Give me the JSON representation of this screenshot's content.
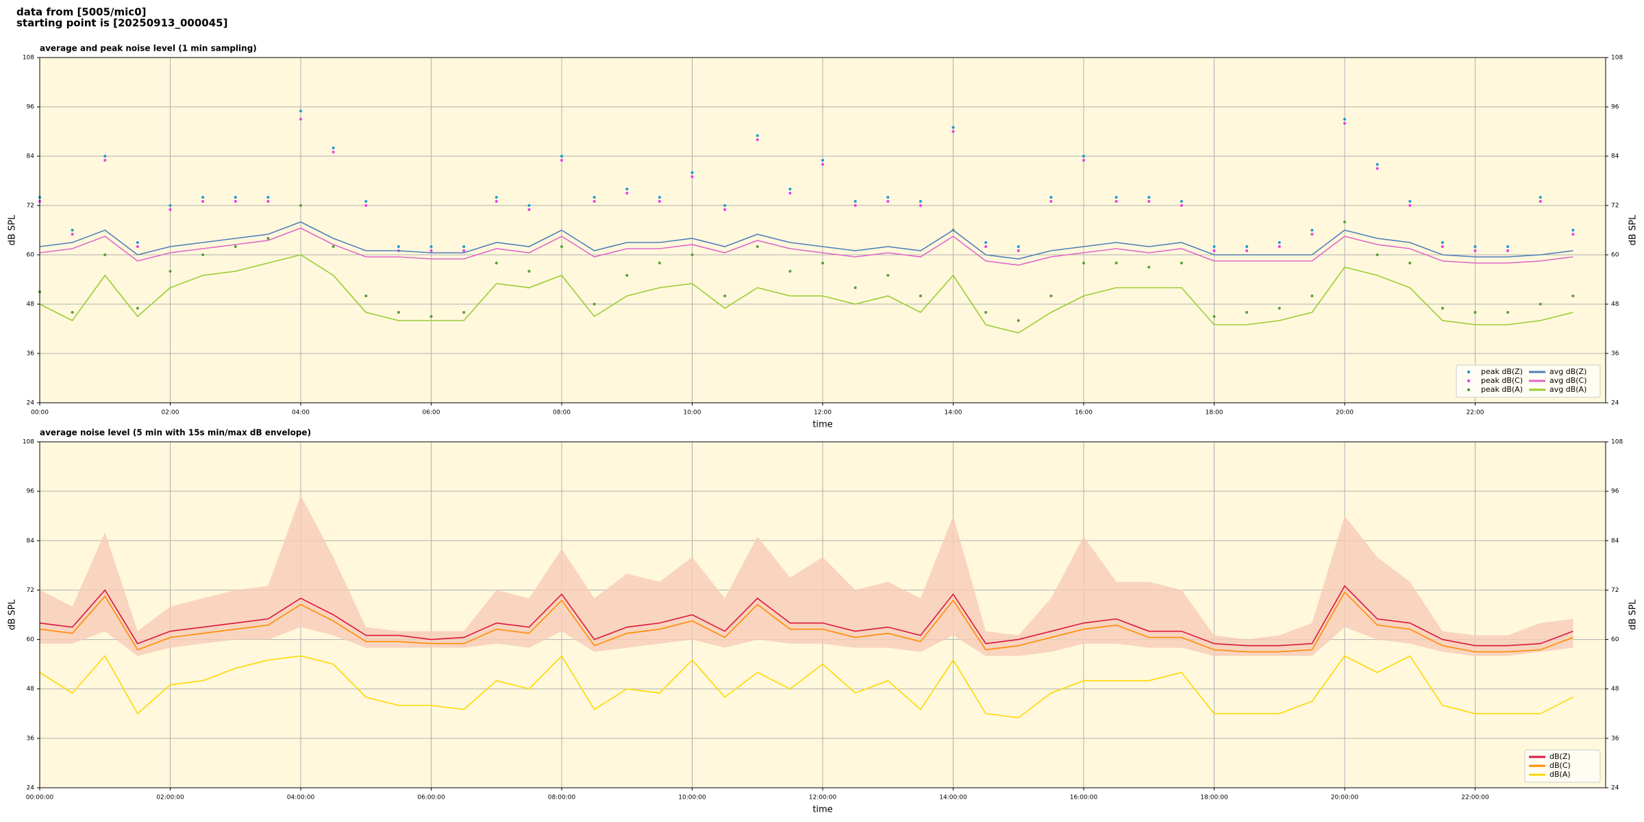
{
  "header": {
    "line1": "data from [5005/mic0]",
    "line2": "starting point is [20250913_000045]"
  },
  "chart_data": [
    {
      "type": "line",
      "title": "average and peak noise level (1 min sampling)",
      "xlabel": "time",
      "ylabel": "dB SPL",
      "background": "#fff8dc",
      "grid": true,
      "legend": "lower right",
      "legend_columns": 2,
      "xlim": [
        0,
        24
      ],
      "ylim": [
        24,
        108
      ],
      "yticks": [
        24,
        36,
        48,
        60,
        72,
        84,
        96,
        108
      ],
      "xticks": [
        {
          "value": 0,
          "label": "00:00"
        },
        {
          "value": 2,
          "label": "02:00"
        },
        {
          "value": 4,
          "label": "04:00"
        },
        {
          "value": 6,
          "label": "06:00"
        },
        {
          "value": 8,
          "label": "08:00"
        },
        {
          "value": 10,
          "label": "10:00"
        },
        {
          "value": 12,
          "label": "12:00"
        },
        {
          "value": 14,
          "label": "14:00"
        },
        {
          "value": 16,
          "label": "16:00"
        },
        {
          "value": 18,
          "label": "18:00"
        },
        {
          "value": 20,
          "label": "20:00"
        },
        {
          "value": 22,
          "label": "22:00"
        }
      ],
      "x": [
        0,
        0.5,
        1,
        1.5,
        2,
        2.5,
        3,
        3.5,
        4,
        4.5,
        5,
        5.5,
        6,
        6.5,
        7,
        7.5,
        8,
        8.5,
        9,
        9.5,
        10,
        10.5,
        11,
        11.5,
        12,
        12.5,
        13,
        13.5,
        14,
        14.5,
        15,
        15.5,
        16,
        16.5,
        17,
        17.5,
        18,
        18.5,
        19,
        19.5,
        20,
        20.5,
        21,
        21.5,
        22,
        22.5,
        23,
        23.5
      ],
      "series": [
        {
          "name": "peak dB(Z)",
          "style": "scatter",
          "color": "#1f9bd1",
          "values": [
            74,
            66,
            84,
            63,
            72,
            74,
            74,
            74,
            95,
            86,
            73,
            62,
            62,
            62,
            74,
            72,
            84,
            74,
            76,
            74,
            80,
            72,
            89,
            76,
            83,
            73,
            74,
            73,
            91,
            63,
            62,
            74,
            84,
            74,
            74,
            73,
            62,
            62,
            63,
            66,
            93,
            82,
            73,
            63,
            62,
            62,
            74,
            66
          ]
        },
        {
          "name": "peak dB(C)",
          "style": "scatter",
          "color": "#e83ee8",
          "values": [
            73,
            65,
            83,
            62,
            71,
            73,
            73,
            73,
            93,
            85,
            72,
            61,
            61,
            61,
            73,
            71,
            83,
            73,
            75,
            73,
            79,
            71,
            88,
            75,
            82,
            72,
            73,
            72,
            90,
            62,
            61,
            73,
            83,
            73,
            73,
            72,
            61,
            61,
            62,
            65,
            92,
            81,
            72,
            62,
            61,
            61,
            73,
            65
          ]
        },
        {
          "name": "peak dB(A)",
          "style": "scatter",
          "color": "#5a9e3a",
          "values": [
            51,
            46,
            60,
            47,
            56,
            60,
            62,
            64,
            72,
            62,
            50,
            46,
            45,
            46,
            58,
            56,
            62,
            48,
            55,
            58,
            60,
            50,
            62,
            56,
            58,
            52,
            55,
            50,
            66,
            46,
            44,
            50,
            58,
            58,
            57,
            58,
            45,
            46,
            47,
            50,
            68,
            60,
            58,
            47,
            46,
            46,
            48,
            50
          ]
        },
        {
          "name": "avg dB(Z)",
          "style": "line",
          "color": "#4f7fb8",
          "values": [
            62,
            63,
            66,
            60,
            62,
            63,
            64,
            65,
            68,
            64,
            61,
            61,
            60.5,
            60.5,
            63,
            62,
            66,
            61,
            63,
            63,
            64,
            62,
            65,
            63,
            62,
            61,
            62,
            61,
            66,
            60,
            59,
            61,
            62,
            63,
            62,
            63,
            60,
            60,
            60,
            60,
            66,
            64,
            63,
            60,
            59.5,
            59.5,
            60,
            61
          ]
        },
        {
          "name": "avg dB(C)",
          "style": "line",
          "color": "#e066c8",
          "values": [
            60.5,
            61.5,
            64.5,
            58.5,
            60.5,
            61.5,
            62.5,
            63.5,
            66.5,
            62.5,
            59.5,
            59.5,
            59,
            59,
            61.5,
            60.5,
            64.5,
            59.5,
            61.5,
            61.5,
            62.5,
            60.5,
            63.5,
            61.5,
            60.5,
            59.5,
            60.5,
            59.5,
            64.5,
            58.5,
            57.5,
            59.5,
            60.5,
            61.5,
            60.5,
            61.5,
            58.5,
            58.5,
            58.5,
            58.5,
            64.5,
            62.5,
            61.5,
            58.5,
            58,
            58,
            58.5,
            59.5
          ]
        },
        {
          "name": "avg dB(A)",
          "style": "line",
          "color": "#9acd32",
          "values": [
            48,
            44,
            55,
            45,
            52,
            55,
            56,
            58,
            60,
            55,
            46,
            44,
            44,
            44,
            53,
            52,
            55,
            45,
            50,
            52,
            53,
            47,
            52,
            50,
            50,
            48,
            50,
            46,
            55,
            43,
            41,
            46,
            50,
            52,
            52,
            52,
            43,
            43,
            44,
            46,
            57,
            55,
            52,
            44,
            43,
            43,
            44,
            46
          ]
        }
      ]
    },
    {
      "type": "line",
      "title": "average noise level (5 min with 15s min/max dB envelope)",
      "xlabel": "time",
      "ylabel": "dB SPL",
      "background": "#fff8dc",
      "grid": true,
      "legend": "lower right",
      "legend_columns": 1,
      "xlim": [
        0,
        24
      ],
      "ylim": [
        24,
        108
      ],
      "yticks": [
        24,
        36,
        48,
        60,
        72,
        84,
        96,
        108
      ],
      "xticks": [
        {
          "value": 0,
          "label": "00:00:00"
        },
        {
          "value": 2,
          "label": "02:00:00"
        },
        {
          "value": 4,
          "label": "04:00:00"
        },
        {
          "value": 6,
          "label": "06:00:00"
        },
        {
          "value": 8,
          "label": "08:00:00"
        },
        {
          "value": 10,
          "label": "10:00:00"
        },
        {
          "value": 12,
          "label": "12:00:00"
        },
        {
          "value": 14,
          "label": "14:00:00"
        },
        {
          "value": 16,
          "label": "16:00:00"
        },
        {
          "value": 18,
          "label": "18:00:00"
        },
        {
          "value": 20,
          "label": "20:00:00"
        },
        {
          "value": 22,
          "label": "22:00:00"
        }
      ],
      "x": [
        0,
        0.5,
        1,
        1.5,
        2,
        2.5,
        3,
        3.5,
        4,
        4.5,
        5,
        5.5,
        6,
        6.5,
        7,
        7.5,
        8,
        8.5,
        9,
        9.5,
        10,
        10.5,
        11,
        11.5,
        12,
        12.5,
        13,
        13.5,
        14,
        14.5,
        15,
        15.5,
        16,
        16.5,
        17,
        17.5,
        18,
        18.5,
        19,
        19.5,
        20,
        20.5,
        21,
        21.5,
        22,
        22.5,
        23,
        23.5
      ],
      "envelope": {
        "color": "#f7cbb8",
        "lower": [
          59,
          59,
          62,
          56,
          58,
          59,
          60,
          60,
          63,
          61,
          58,
          58,
          58,
          58,
          59,
          58,
          62,
          57,
          58,
          59,
          60,
          58,
          60,
          59,
          59,
          58,
          58,
          57,
          61,
          56,
          56,
          57,
          59,
          59,
          58,
          58,
          56,
          56,
          56,
          56,
          63,
          60,
          59,
          57,
          56,
          56,
          57,
          58
        ],
        "upper": [
          72,
          68,
          86,
          62,
          68,
          70,
          72,
          73,
          95,
          80,
          63,
          62,
          62,
          62,
          72,
          70,
          82,
          70,
          76,
          74,
          80,
          70,
          85,
          75,
          80,
          72,
          74,
          70,
          90,
          62,
          61,
          70,
          85,
          74,
          74,
          72,
          61,
          60,
          61,
          64,
          90,
          80,
          74,
          62,
          61,
          61,
          64,
          65
        ]
      },
      "series": [
        {
          "name": "dB(Z)",
          "style": "line",
          "color": "#dc143c",
          "values": [
            64,
            63,
            72,
            59,
            62,
            63,
            64,
            65,
            70,
            66,
            61,
            61,
            60,
            60.5,
            64,
            63,
            71,
            60,
            63,
            64,
            66,
            62,
            70,
            64,
            64,
            62,
            63,
            61,
            71,
            59,
            60,
            62,
            64,
            65,
            62,
            62,
            59,
            58.5,
            58.5,
            59,
            73,
            65,
            64,
            60,
            58.5,
            58.5,
            59,
            62
          ]
        },
        {
          "name": "dB(C)",
          "style": "line",
          "color": "#ff8c00",
          "values": [
            62.5,
            61.5,
            70.5,
            57.5,
            60.5,
            61.5,
            62.5,
            63.5,
            68.5,
            64.5,
            59.5,
            59.5,
            59,
            59,
            62.5,
            61.5,
            69.5,
            58.5,
            61.5,
            62.5,
            64.5,
            60.5,
            68.5,
            62.5,
            62.5,
            60.5,
            61.5,
            59.5,
            69.5,
            57.5,
            58.5,
            60.5,
            62.5,
            63.5,
            60.5,
            60.5,
            57.5,
            57,
            57,
            57.5,
            71.5,
            63.5,
            62.5,
            58.5,
            57,
            57,
            57.5,
            60.5
          ]
        },
        {
          "name": "dB(A)",
          "style": "line",
          "color": "#ffd700",
          "values": [
            52,
            47,
            56,
            42,
            49,
            50,
            53,
            55,
            56,
            54,
            46,
            44,
            44,
            43,
            50,
            48,
            56,
            43,
            48,
            47,
            55,
            46,
            52,
            48,
            54,
            47,
            50,
            43,
            55,
            42,
            41,
            47,
            50,
            50,
            50,
            52,
            42,
            42,
            42,
            45,
            56,
            52,
            56,
            44,
            42,
            42,
            42,
            46
          ]
        }
      ]
    }
  ]
}
